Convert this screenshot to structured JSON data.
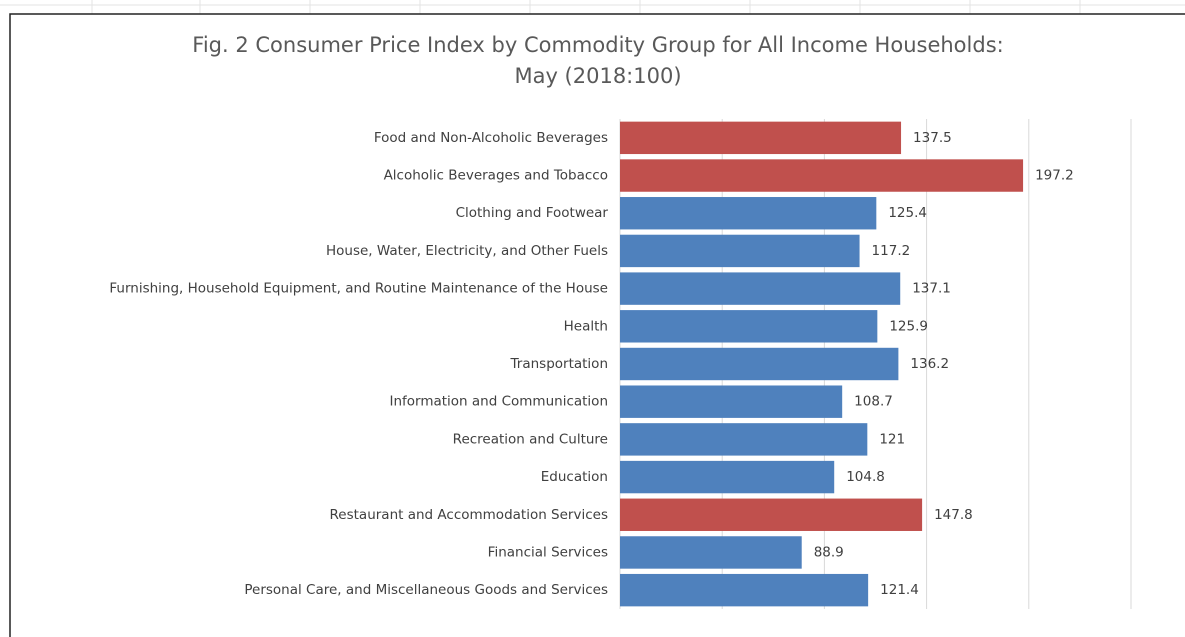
{
  "chart_data": {
    "type": "barh",
    "title": [
      "Fig. 2 Consumer Price Index by Commodity Group for All Income Households:",
      "May (2018:100)"
    ],
    "categories": [
      "Food and Non-Alcoholic Beverages",
      "Alcoholic Beverages and Tobacco",
      "Clothing and Footwear",
      "House, Water, Electricity, and Other Fuels",
      "Furnishing, Household Equipment, and Routine Maintenance of the House",
      "Health",
      "Transportation",
      "Information and Communication",
      "Recreation and Culture",
      "Education",
      "Restaurant and Accommodation Services",
      "Financial Services",
      "Personal Care, and Miscellaneous Goods and Services"
    ],
    "values": [
      137.5,
      197.2,
      125.4,
      117.2,
      137.1,
      125.9,
      136.2,
      108.7,
      121,
      104.8,
      147.8,
      88.9,
      121.4
    ],
    "colors": [
      "#c0504d",
      "#c0504d",
      "#4f81bd",
      "#4f81bd",
      "#4f81bd",
      "#4f81bd",
      "#4f81bd",
      "#4f81bd",
      "#4f81bd",
      "#4f81bd",
      "#c0504d",
      "#4f81bd",
      "#4f81bd"
    ],
    "xlim": [
      0,
      250
    ],
    "xticks": [
      0,
      50,
      100,
      150,
      200,
      250
    ],
    "grid": true
  }
}
